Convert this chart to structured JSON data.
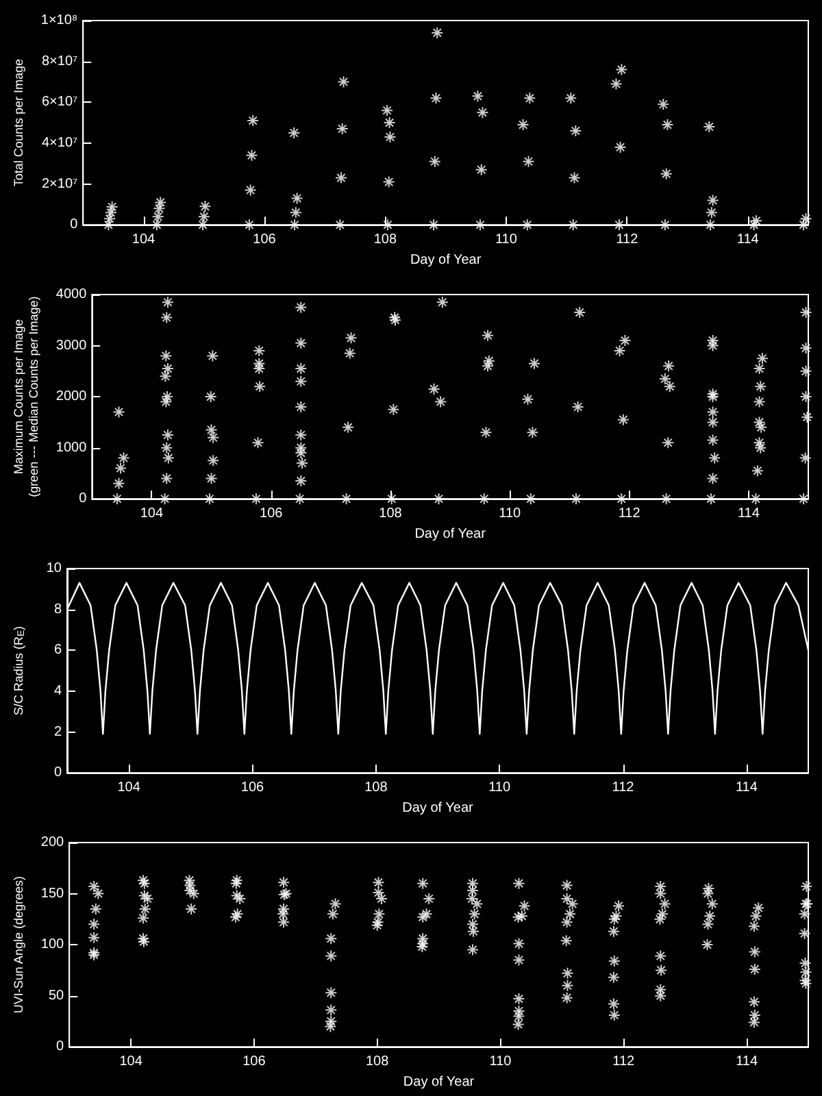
{
  "chart_data": [
    {
      "type": "scatter",
      "xlabel": "Day of Year",
      "ylabel": "Total Counts per Image",
      "marker": "cross",
      "xlim": [
        103,
        115
      ],
      "xticks": [
        104,
        106,
        108,
        110,
        112,
        114
      ],
      "ylim": [
        0,
        100000000
      ],
      "yticks": [
        0,
        {
          "value": 20000000,
          "label": "2×10⁷"
        },
        {
          "value": 40000000,
          "label": "4×10⁷"
        },
        {
          "value": 60000000,
          "label": "6×10⁷"
        },
        {
          "value": 80000000,
          "label": "8×10⁷"
        },
        {
          "value": 100000000,
          "label": "1×10⁸"
        }
      ],
      "series": [
        {
          "color": "#ffffff",
          "x": [
            103.42,
            103.44,
            103.46,
            103.48,
            104.22,
            104.24,
            104.26,
            104.28,
            104.98,
            105.0,
            105.02,
            105.75,
            105.77,
            105.79,
            105.81,
            106.49,
            106.5,
            106.52,
            106.54,
            107.25,
            107.27,
            107.29,
            107.31,
            108.03,
            108.07,
            108.04,
            108.06,
            108.08,
            108.8,
            108.82,
            108.84,
            108.86,
            109.53,
            109.57,
            109.59,
            109.61,
            110.28,
            110.35,
            110.37,
            110.39,
            111.07,
            111.11,
            111.13,
            111.15,
            111.82,
            111.87,
            111.89,
            111.91,
            112.6,
            112.63,
            112.65,
            112.67,
            113.36,
            113.38,
            113.4,
            113.42,
            114.1,
            114.14,
            114.92,
            114.96
          ],
          "values": [
            0,
            3000000,
            6000000,
            8800000,
            0,
            4000000,
            8000000,
            11000000,
            0,
            4000000,
            9000000,
            0,
            17000000,
            34000000,
            51000000,
            45000000,
            0,
            6000000,
            13000000,
            0,
            23000000,
            47000000,
            70000000,
            56000000,
            50000000,
            0,
            21000000,
            43000000,
            0,
            31000000,
            62000000,
            94000000,
            63000000,
            0,
            27000000,
            55000000,
            49000000,
            0,
            31000000,
            62000000,
            62000000,
            0,
            23000000,
            46000000,
            69000000,
            0,
            38000000,
            76000000,
            59000000,
            0,
            25000000,
            49000000,
            48000000,
            0,
            6000000,
            12000000,
            0,
            2000000,
            0,
            3000000
          ]
        }
      ]
    },
    {
      "type": "scatter",
      "xlabel": "Day of Year",
      "ylabel": "Maximum Counts per Image\n(green --- Median Counts per Image)",
      "marker": "cross",
      "xlim": [
        103,
        115
      ],
      "xticks": [
        104,
        106,
        108,
        110,
        112,
        114
      ],
      "ylim": [
        0,
        4000
      ],
      "yticks": [
        0,
        1000,
        2000,
        3000,
        4000
      ],
      "series": [
        {
          "color": "#ffffff",
          "x": [
            103.42,
            103.45,
            103.48,
            103.45,
            103.53,
            104.22,
            104.25,
            104.28,
            104.27,
            104.25,
            104.24,
            104.27,
            104.23,
            104.26,
            104.24,
            104.27,
            104.25,
            104.97,
            105.0,
            105.03,
            105.02,
            104.99,
            105.0,
            105.03,
            105.75,
            105.78,
            105.81,
            105.8,
            105.8,
            105.8,
            106.48,
            106.5,
            106.52,
            106.5,
            106.5,
            106.5,
            106.5,
            106.5,
            106.5,
            106.5,
            106.5,
            107.26,
            107.29,
            107.32,
            107.34,
            108.02,
            108.05,
            108.08,
            108.07,
            108.81,
            108.84,
            108.87,
            108.73,
            109.57,
            109.6,
            109.63,
            109.63,
            109.65,
            110.35,
            110.38,
            110.41,
            110.3,
            111.11,
            111.14,
            111.17,
            111.87,
            111.9,
            111.93,
            111.84,
            112.62,
            112.65,
            112.68,
            112.66,
            112.6,
            113.37,
            113.4,
            113.43,
            113.4,
            113.4,
            113.4,
            113.4,
            113.4,
            113.4,
            113.4,
            114.12,
            114.15,
            114.18,
            114.23,
            114.18,
            114.2,
            114.18,
            114.18,
            114.21,
            114.2,
            114.92,
            114.95,
            114.98,
            114.96,
            114.96,
            114.96,
            114.96
          ],
          "values": [
            0,
            300,
            600,
            1700,
            800,
            0,
            400,
            800,
            3850,
            3550,
            2800,
            2550,
            2400,
            2000,
            1900,
            1250,
            1000,
            0,
            400,
            750,
            2800,
            2000,
            1350,
            1200,
            0,
            1100,
            2200,
            2900,
            2650,
            2550,
            0,
            350,
            700,
            3750,
            3050,
            2550,
            2300,
            1800,
            1250,
            1000,
            900,
            0,
            1400,
            2850,
            3150,
            0,
            1750,
            3500,
            3550,
            0,
            1900,
            3850,
            2150,
            0,
            1300,
            2600,
            3200,
            2700,
            0,
            1300,
            2650,
            1950,
            0,
            1800,
            3650,
            0,
            1550,
            3100,
            2900,
            0,
            1100,
            2200,
            2600,
            2350,
            0,
            400,
            800,
            3100,
            3000,
            2050,
            2000,
            1700,
            1500,
            1150,
            0,
            550,
            1100,
            2750,
            2550,
            2200,
            1900,
            1500,
            1400,
            1000,
            0,
            800,
            1600,
            3650,
            2950,
            2500,
            2000
          ]
        }
      ]
    },
    {
      "type": "line",
      "xlabel": "Day of Year",
      "ylabel": "S/C Radius (R$_{E}$)",
      "marker": "none",
      "xlim": [
        103,
        115
      ],
      "xticks": [
        104,
        106,
        108,
        110,
        112,
        114
      ],
      "ylim": [
        0,
        10
      ],
      "yticks": [
        0,
        2,
        4,
        6,
        8,
        10
      ],
      "series": [
        {
          "color": "#ffffff",
          "x": [
            103.0,
            103.2,
            103.38,
            103.48,
            103.54,
            103.58,
            103.62,
            103.68,
            103.78,
            103.96,
            104.14,
            104.24,
            104.3,
            104.34,
            104.38,
            104.44,
            104.54,
            104.72,
            104.91,
            105.01,
            105.07,
            105.11,
            105.15,
            105.21,
            105.31,
            105.49,
            105.67,
            105.77,
            105.83,
            105.87,
            105.91,
            105.97,
            106.07,
            106.25,
            106.43,
            106.53,
            106.59,
            106.63,
            106.67,
            106.73,
            106.83,
            107.01,
            107.19,
            107.29,
            107.35,
            107.39,
            107.43,
            107.49,
            107.59,
            107.77,
            107.96,
            108.06,
            108.12,
            108.16,
            108.2,
            108.26,
            108.36,
            108.54,
            108.72,
            108.82,
            108.88,
            108.92,
            108.96,
            109.02,
            109.12,
            109.3,
            109.48,
            109.58,
            109.64,
            109.68,
            109.72,
            109.78,
            109.88,
            110.06,
            110.24,
            110.34,
            110.4,
            110.44,
            110.48,
            110.54,
            110.64,
            110.82,
            111.01,
            111.11,
            111.17,
            111.21,
            111.25,
            111.31,
            111.41,
            111.59,
            111.77,
            111.87,
            111.93,
            111.97,
            112.01,
            112.07,
            112.17,
            112.35,
            112.53,
            112.63,
            112.69,
            112.73,
            112.77,
            112.83,
            112.93,
            113.11,
            113.29,
            113.39,
            113.45,
            113.49,
            113.53,
            113.59,
            113.69,
            113.87,
            114.06,
            114.16,
            114.22,
            114.26,
            114.3,
            114.36,
            114.46,
            114.64,
            114.84,
            115.0
          ],
          "values": [
            8.0,
            9.3,
            8.2,
            6,
            4,
            1.9,
            4,
            6,
            8.2,
            9.3,
            8.2,
            6,
            4,
            1.9,
            4,
            6,
            8.2,
            9.3,
            8.2,
            6,
            4,
            1.9,
            4,
            6,
            8.2,
            9.3,
            8.2,
            6,
            4,
            1.9,
            4,
            6,
            8.2,
            9.3,
            8.2,
            6,
            4,
            1.9,
            4,
            6,
            8.2,
            9.3,
            8.2,
            6,
            4,
            1.9,
            4,
            6,
            8.2,
            9.3,
            8.2,
            6,
            4,
            1.9,
            4,
            6,
            8.2,
            9.3,
            8.2,
            6,
            4,
            1.9,
            4,
            6,
            8.2,
            9.3,
            8.2,
            6,
            4,
            1.9,
            4,
            6,
            8.2,
            9.3,
            8.2,
            6,
            4,
            1.9,
            4,
            6,
            8.2,
            9.3,
            8.2,
            6,
            4,
            1.9,
            4,
            6,
            8.2,
            9.3,
            8.2,
            6,
            4,
            1.9,
            4,
            6,
            8.2,
            9.3,
            8.2,
            6,
            4,
            1.9,
            4,
            6,
            8.2,
            9.3,
            8.2,
            6,
            4,
            1.9,
            4,
            6,
            8.2,
            9.3,
            8.2,
            6,
            4,
            1.9,
            4,
            6,
            8.2,
            9.3,
            8.2,
            6.0
          ]
        }
      ]
    },
    {
      "type": "scatter",
      "xlabel": "Day of Year",
      "ylabel": "UVI-Sun Angle (degrees)",
      "marker": "cross",
      "xlim": [
        103,
        115
      ],
      "xticks": [
        104,
        106,
        108,
        110,
        112,
        114
      ],
      "ylim": [
        0,
        200
      ],
      "yticks": [
        0,
        50,
        100,
        150,
        200
      ],
      "series": [
        {
          "color": "#ffffff",
          "x": [
            103.43,
            103.47,
            103.4,
            103.4,
            103.4,
            103.4,
            103.4,
            104.23,
            104.27,
            104.2,
            104.22,
            104.22,
            104.2,
            104.2,
            104.21,
            104.98,
            105.02,
            104.95,
            104.96,
            104.96,
            105.73,
            105.77,
            105.72,
            105.71,
            105.72,
            105.7,
            106.48,
            106.52,
            106.48,
            106.49,
            106.47,
            106.48,
            107.28,
            107.32,
            107.25,
            107.25,
            107.25,
            107.25,
            107.25,
            107.24,
            108.03,
            108.07,
            108.02,
            108.02,
            108.01,
            108.0,
            108.8,
            108.84,
            108.74,
            108.74,
            108.74,
            108.74,
            108.73,
            109.58,
            109.62,
            109.55,
            109.55,
            109.54,
            109.55,
            109.56,
            109.55,
            110.35,
            110.39,
            110.3,
            110.29,
            110.3,
            110.3,
            110.3,
            110.3,
            110.3,
            110.29,
            111.13,
            111.17,
            111.08,
            111.08,
            111.08,
            111.07,
            111.09,
            111.09,
            111.08,
            111.88,
            111.92,
            111.85,
            111.84,
            111.85,
            111.84,
            111.84,
            111.85,
            112.63,
            112.67,
            112.6,
            112.6,
            112.59,
            112.6,
            112.61,
            112.6,
            112.6,
            113.4,
            113.44,
            113.38,
            113.37,
            113.37,
            113.36,
            114.15,
            114.19,
            114.12,
            114.13,
            114.13,
            114.12,
            114.13,
            114.12,
            114.94,
            114.98,
            114.97,
            114.96,
            114.94,
            114.95,
            114.96,
            114.95,
            114.96
          ],
          "values": [
            135,
            150,
            157,
            120,
            107,
            92,
            90,
            135,
            145,
            163,
            160,
            148,
            126,
            106,
            103,
            135,
            150,
            163,
            158,
            153,
            130,
            145,
            163,
            160,
            148,
            127,
            135,
            150,
            161,
            149,
            130,
            122,
            130,
            140,
            106,
            89,
            53,
            36,
            25,
            20,
            130,
            145,
            161,
            151,
            122,
            119,
            130,
            145,
            160,
            127,
            106,
            101,
            98,
            130,
            140,
            160,
            153,
            145,
            120,
            113,
            95,
            128,
            138,
            160,
            127,
            101,
            85,
            47,
            35,
            30,
            22,
            130,
            140,
            158,
            145,
            122,
            104,
            72,
            60,
            48,
            128,
            138,
            125,
            113,
            84,
            68,
            42,
            31,
            130,
            140,
            157,
            150,
            125,
            89,
            75,
            56,
            50,
            128,
            140,
            155,
            150,
            120,
            100,
            128,
            136,
            118,
            93,
            76,
            44,
            31,
            24,
            130,
            140,
            157,
            140,
            111,
            82,
            73,
            65,
            62
          ]
        }
      ]
    }
  ]
}
